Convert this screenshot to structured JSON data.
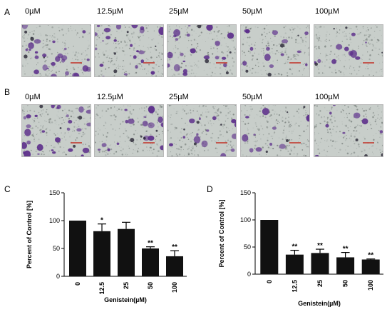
{
  "panels": {
    "A": {
      "letter": "A",
      "concentrations": [
        "0µM",
        "12.5µM",
        "25µM",
        "50µM",
        "100µM"
      ]
    },
    "B": {
      "letter": "B",
      "concentrations": [
        "0µM",
        "12.5µM",
        "25µM",
        "50µM",
        "100µM"
      ]
    },
    "C": {
      "letter": "C"
    },
    "D": {
      "letter": "D"
    }
  },
  "colors": {
    "micro_background": "#c8ceca",
    "cell_purple": "#5b2c8a",
    "bar_fill": "#111111"
  },
  "chart_data": [
    {
      "panel": "C",
      "type": "bar",
      "categories": [
        "0",
        "12.5",
        "25",
        "50",
        "100"
      ],
      "values": [
        100,
        81,
        85,
        50,
        36
      ],
      "errors": [
        0,
        13,
        12,
        3,
        10
      ],
      "annotations": [
        "",
        "*",
        "",
        "**",
        "**"
      ],
      "xlabel": "Genistein(µM)",
      "ylabel": "Percent of Control [%]",
      "ylim": [
        0,
        150
      ],
      "yticks": [
        0,
        50,
        100,
        150
      ],
      "grid": false
    },
    {
      "panel": "D",
      "type": "bar",
      "categories": [
        "0",
        "12.5",
        "25",
        "50",
        "100"
      ],
      "values": [
        100,
        36,
        39,
        31,
        27
      ],
      "errors": [
        0,
        8,
        7,
        9,
        1
      ],
      "annotations": [
        "",
        "**",
        "**",
        "**",
        "**"
      ],
      "xlabel": "Genistein(µM)",
      "ylabel": "Percent of Control [%]",
      "ylim": [
        0,
        150
      ],
      "yticks": [
        0,
        50,
        100,
        150
      ],
      "grid": false
    }
  ]
}
